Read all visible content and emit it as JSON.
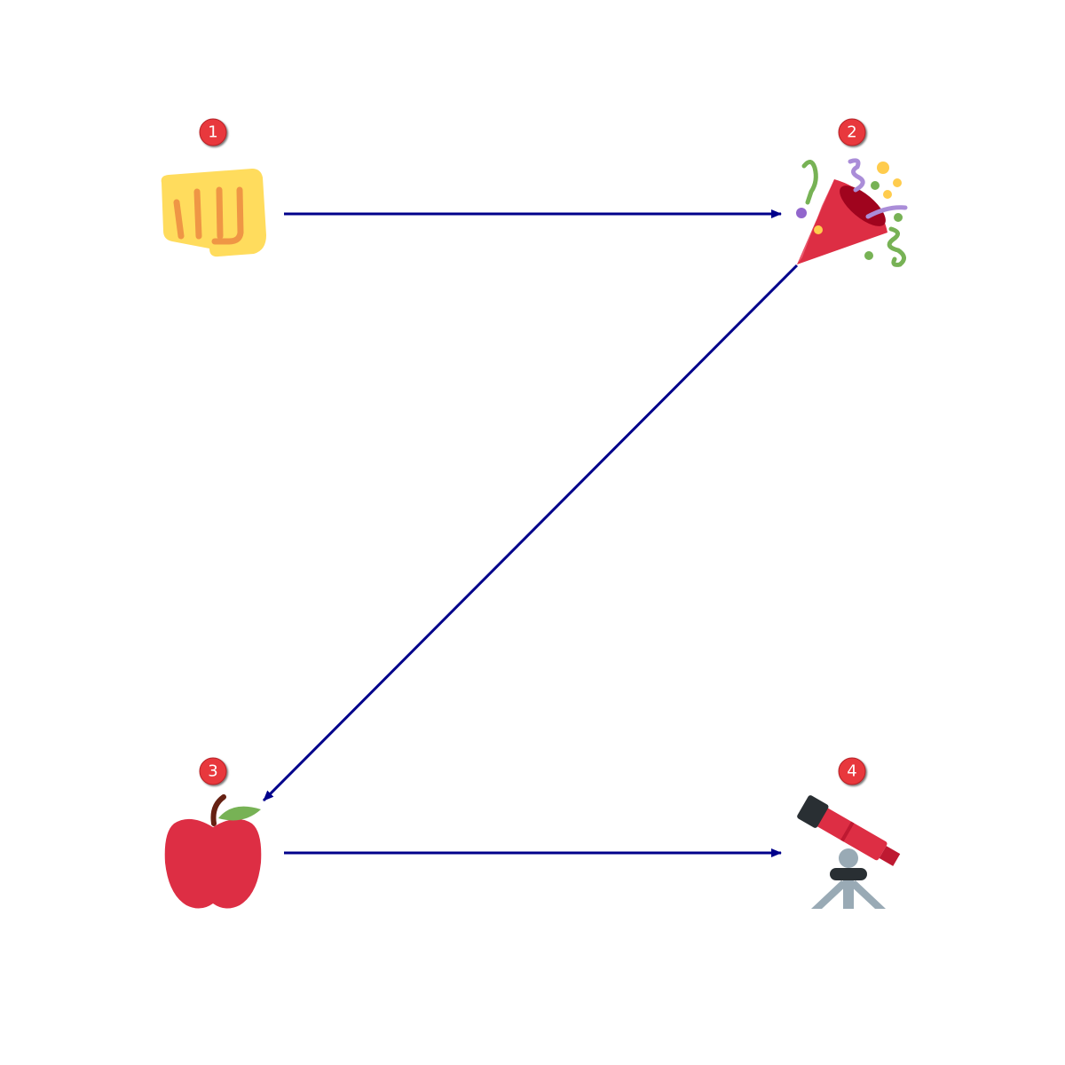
{
  "diagram": {
    "type": "flow-sequence",
    "colors": {
      "arrow": "#00008b",
      "badge_fill": "#e8383d",
      "badge_text": "#ffffff"
    },
    "nodes": [
      {
        "id": "n1",
        "badge": "1",
        "icon": "oncoming-fist-icon"
      },
      {
        "id": "n2",
        "badge": "2",
        "icon": "party-popper-icon"
      },
      {
        "id": "n3",
        "badge": "3",
        "icon": "red-apple-icon"
      },
      {
        "id": "n4",
        "badge": "4",
        "icon": "telescope-icon"
      }
    ],
    "edges": [
      {
        "from": "n1",
        "to": "n2"
      },
      {
        "from": "n2",
        "to": "n3"
      },
      {
        "from": "n3",
        "to": "n4"
      }
    ]
  }
}
